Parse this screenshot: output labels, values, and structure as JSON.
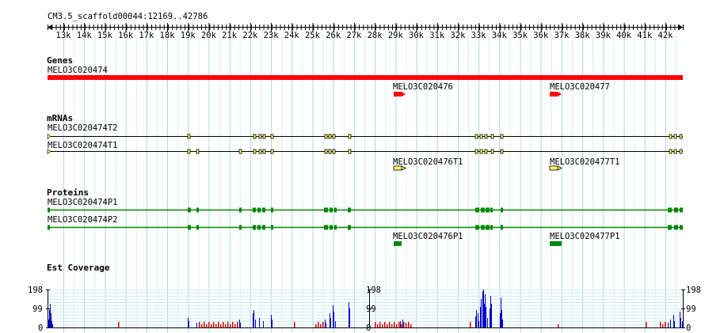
{
  "title": "CM3.5_scaffold00044:12169..42786",
  "ruler": {
    "ticks": [
      "13k",
      "14k",
      "15k",
      "16k",
      "17k",
      "18k",
      "19k",
      "20k",
      "21k",
      "22k",
      "23k",
      "24k",
      "25k",
      "26k",
      "27k",
      "28k",
      "29k",
      "30k",
      "31k",
      "32k",
      "33k",
      "34k",
      "35k",
      "36k",
      "37k",
      "38k",
      "39k",
      "40k",
      "41k",
      "42k"
    ]
  },
  "tracks": {
    "genes": {
      "header": "Genes",
      "features": [
        {
          "name": "MELO3C020474",
          "color": "#ff0000"
        },
        {
          "name": "MELO3C020476",
          "color": "#ff0000"
        },
        {
          "name": "MELO3C020477",
          "color": "#ff0000"
        }
      ]
    },
    "mrnas": {
      "header": "mRNAs",
      "features": [
        {
          "name": "MELO3C020474T2"
        },
        {
          "name": "MELO3C020474T1"
        },
        {
          "name": "MELO3C020476T1"
        },
        {
          "name": "MELO3C020477T1"
        }
      ]
    },
    "proteins": {
      "header": "Proteins",
      "features": [
        {
          "name": "MELO3C020474P1"
        },
        {
          "name": "MELO3C020474P2"
        },
        {
          "name": "MELO3C020476P1"
        },
        {
          "name": "MELO3C020477P1"
        }
      ]
    },
    "est": {
      "header": "Est Coverage",
      "scale_labels": [
        "198",
        "99",
        "0"
      ]
    }
  },
  "colors": {
    "grid": "#a8dbe6",
    "gene": "#ff0000",
    "exon": "#ffff66",
    "protein": "#008800",
    "coverage_blue": "#0000cc",
    "coverage_red": "#dd0000"
  }
}
